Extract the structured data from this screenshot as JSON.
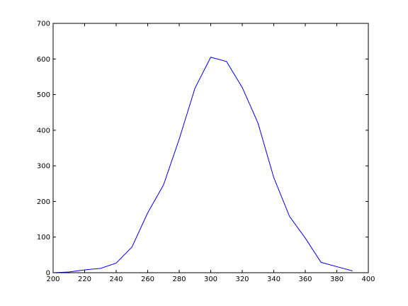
{
  "chart_data": {
    "type": "line",
    "title": "",
    "xlabel": "",
    "ylabel": "",
    "xlim": [
      200,
      400
    ],
    "ylim": [
      0,
      700
    ],
    "xticks": [
      200,
      220,
      240,
      260,
      280,
      300,
      320,
      340,
      360,
      380,
      400
    ],
    "yticks": [
      0,
      100,
      200,
      300,
      400,
      500,
      600,
      700
    ],
    "grid": false,
    "legend": "none",
    "series": [
      {
        "color": "#0000ff",
        "x": [
          200,
          210,
          220,
          230,
          240,
          250,
          260,
          270,
          280,
          290,
          300,
          310,
          320,
          330,
          340,
          350,
          360,
          370,
          380,
          390
        ],
        "y": [
          0,
          2,
          8,
          12,
          27,
          72,
          168,
          246,
          375,
          518,
          605,
          593,
          520,
          420,
          267,
          158,
          97,
          29,
          17,
          5
        ]
      }
    ]
  }
}
